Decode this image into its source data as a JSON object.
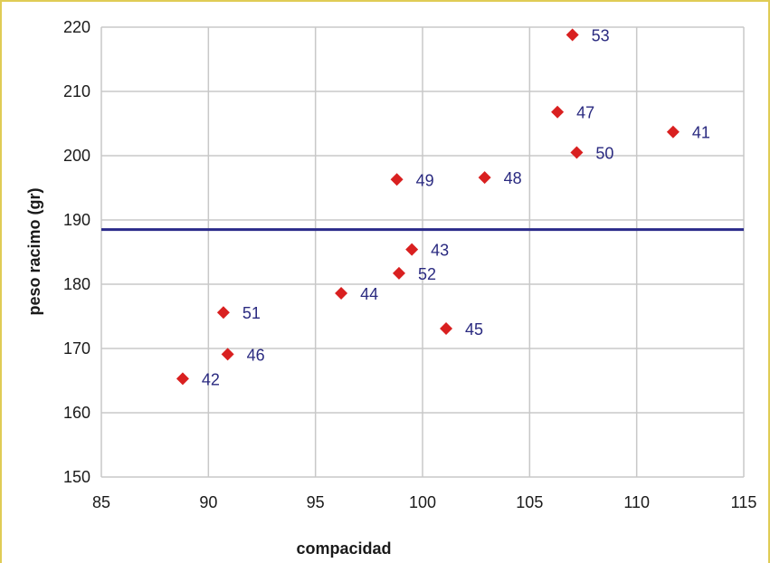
{
  "colors": {
    "frame": "#e0cc55",
    "grid": "#c8c8c8",
    "marker": "#d92020",
    "reference_line": "#2a2a8a",
    "point_label": "#2a2a80"
  },
  "chart_data": {
    "type": "scatter",
    "title": "",
    "xlabel": "compacidad",
    "ylabel": "peso racimo (gr)",
    "xlim": [
      85,
      115
    ],
    "ylim": [
      150,
      220
    ],
    "x_ticks": [
      85,
      90,
      95,
      100,
      105,
      110,
      115
    ],
    "y_ticks": [
      150,
      160,
      170,
      180,
      190,
      200,
      210,
      220
    ],
    "grid": true,
    "legend": "none",
    "marker": "diamond",
    "reference_line": {
      "orientation": "horizontal",
      "y": 188.5
    },
    "points": [
      {
        "label": "53",
        "x": 107.0,
        "y": 218.8
      },
      {
        "label": "47",
        "x": 106.3,
        "y": 206.8
      },
      {
        "label": "41",
        "x": 111.7,
        "y": 203.7
      },
      {
        "label": "50",
        "x": 107.2,
        "y": 200.5
      },
      {
        "label": "49",
        "x": 98.8,
        "y": 196.3
      },
      {
        "label": "48",
        "x": 102.9,
        "y": 196.6
      },
      {
        "label": "43",
        "x": 99.5,
        "y": 185.4
      },
      {
        "label": "52",
        "x": 98.9,
        "y": 181.7
      },
      {
        "label": "44",
        "x": 96.2,
        "y": 178.6
      },
      {
        "label": "51",
        "x": 90.7,
        "y": 175.6
      },
      {
        "label": "45",
        "x": 101.1,
        "y": 173.1
      },
      {
        "label": "46",
        "x": 90.9,
        "y": 169.1
      },
      {
        "label": "42",
        "x": 88.8,
        "y": 165.3
      }
    ]
  }
}
